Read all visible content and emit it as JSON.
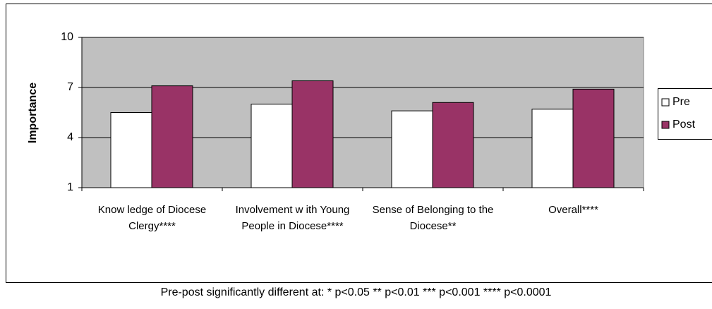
{
  "chart_data": {
    "type": "bar",
    "y_label": "Importance",
    "categories": [
      "Know ledge of Diocese Clergy****",
      "Involvement w ith Young People in Diocese****",
      "Sense of Belonging to the Diocese**",
      "Overall****"
    ],
    "series": [
      {
        "name": "Pre",
        "color": "#ffffff",
        "values": [
          5.5,
          6.0,
          5.6,
          5.7
        ]
      },
      {
        "name": "Post",
        "color": "#993366",
        "values": [
          7.1,
          7.4,
          6.1,
          6.9
        ]
      }
    ],
    "ylim": [
      1,
      10
    ],
    "yticks": [
      1,
      4,
      7,
      10
    ],
    "grid": true,
    "legend": "right",
    "footnote": "Pre-post significantly different at:  * p<0.05   ** p<0.01   *** p<0.001   **** p<0.0001"
  }
}
